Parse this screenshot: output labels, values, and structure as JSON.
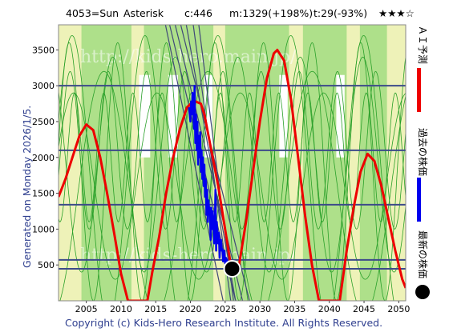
{
  "header": {
    "code_name": "4053=Sun",
    "asterisk": "Asterisk",
    "c": "c:446",
    "m": "m:1329(+198%)",
    "t": "t:29(-93%)",
    "stars": "★★★☆"
  },
  "side_label": "Generated on Monday 2026/1/5.",
  "copyright": "Copyright (c) Kids-Hero Research Institute. All Rights Reserved.",
  "watermark": "http://kids-hero.main.jp/",
  "legend": {
    "ai_forecast": "ＡＩ予測",
    "past_price": "過去の株価",
    "latest_price": "最新の株価"
  },
  "colors": {
    "bg_green": "#aee08a",
    "bg_yellow": "#eef2b8",
    "bg_white": "#ffffff",
    "thin_green": "#2aa02a",
    "forecast_red": "#ee0000",
    "price_blue": "#0000ee",
    "hline_navy": "#3c4a8a",
    "diag_navy": "#404a78",
    "marker": "#000000"
  },
  "chart_data": {
    "type": "line",
    "title": "",
    "xlabel": "",
    "ylabel": "",
    "xlim": [
      2001,
      2051
    ],
    "ylim": [
      0,
      3850
    ],
    "x_ticks": [
      2005,
      2010,
      2015,
      2020,
      2025,
      2030,
      2035,
      2040,
      2045,
      2050
    ],
    "y_ticks": [
      500,
      1000,
      1500,
      2000,
      2500,
      3000,
      3500
    ],
    "horizontal_levels": [
      3000,
      2100,
      1340,
      570,
      446
    ],
    "series": [
      {
        "name": "ＡＩ予測",
        "x": [
          2001.0,
          2002.0,
          2003.0,
          2004.0,
          2005.0,
          2006.0,
          2007.0,
          2008.0,
          2009.0,
          2010.0,
          2011.0,
          2013.8,
          2014.5,
          2015.5,
          2016.5,
          2017.5,
          2018.5,
          2019.5,
          2020.5,
          2021.5,
          2022.0,
          2024.0,
          2026.0,
          2027.0,
          2028.0,
          2029.0,
          2030.0,
          2031.0,
          2032.0,
          2032.5,
          2033.5,
          2034.5,
          2035.5,
          2036.5,
          2037.5,
          2038.5,
          2041.5,
          2042.5,
          2043.5,
          2044.5,
          2045.5,
          2046.5,
          2047.5,
          2048.5,
          2049.5,
          2050.5,
          2051.0
        ],
        "y": [
          1450,
          1700,
          2000,
          2300,
          2460,
          2380,
          2000,
          1500,
          950,
          380,
          0,
          0,
          400,
          900,
          1500,
          2000,
          2400,
          2700,
          2790,
          2750,
          2600,
          1600,
          380,
          500,
          1100,
          1800,
          2500,
          3100,
          3450,
          3500,
          3350,
          2800,
          2000,
          1200,
          500,
          0,
          0,
          700,
          1300,
          1800,
          2050,
          1950,
          1600,
          1150,
          700,
          300,
          180
        ]
      },
      {
        "name": "過去の株価",
        "x": [
          2019.8,
          2020.0,
          2020.1,
          2020.2,
          2020.3,
          2020.4,
          2020.5,
          2020.6,
          2020.7,
          2020.8,
          2020.9,
          2021.0,
          2021.1,
          2021.2,
          2021.3,
          2021.4,
          2021.5,
          2021.6,
          2021.7,
          2021.8,
          2021.9,
          2022.0,
          2022.1,
          2022.2,
          2022.3,
          2022.4,
          2022.5,
          2022.6,
          2022.7,
          2022.8,
          2022.9,
          2023.0,
          2023.1,
          2023.2,
          2023.3,
          2023.4,
          2023.5,
          2023.6,
          2023.7,
          2023.8,
          2023.9,
          2024.0,
          2024.1,
          2024.2,
          2024.3,
          2024.4,
          2024.5,
          2024.6,
          2024.7,
          2024.8,
          2024.9,
          2025.0,
          2025.1,
          2025.2,
          2025.4,
          2025.6
        ],
        "y": [
          2700,
          2500,
          2780,
          2600,
          2900,
          2700,
          2400,
          3000,
          2200,
          2600,
          2100,
          2500,
          1900,
          2300,
          2000,
          2350,
          1800,
          2100,
          1700,
          2000,
          1600,
          1900,
          1450,
          1700,
          1200,
          1550,
          1100,
          1400,
          1250,
          1300,
          850,
          1300,
          1000,
          1250,
          1100,
          800,
          1000,
          1550,
          700,
          1100,
          900,
          800,
          950,
          600,
          800,
          850,
          700,
          720,
          550,
          650,
          700,
          520,
          600,
          580,
          500,
          470
        ]
      },
      {
        "name": "最新の株価",
        "x": [
          2026.0
        ],
        "y": [
          446
        ]
      }
    ]
  }
}
